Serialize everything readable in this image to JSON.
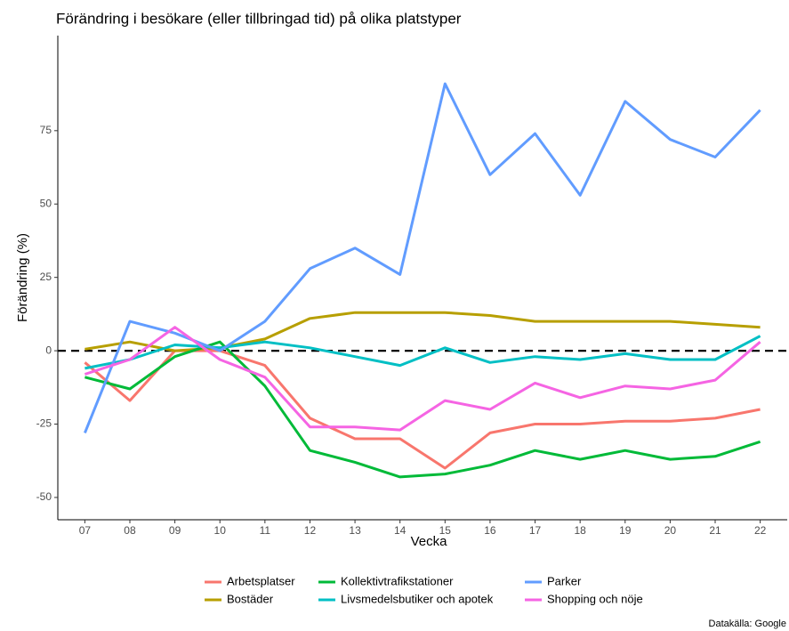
{
  "chart_data": {
    "type": "line",
    "title": "Förändring i besökare (eller tillbringad tid) på olika platstyper",
    "x_label": "Vecka",
    "y_label": "Förändring (%)",
    "caption": "Datakälla: Google",
    "categories": [
      "07",
      "08",
      "09",
      "10",
      "11",
      "12",
      "13",
      "14",
      "15",
      "16",
      "17",
      "18",
      "19",
      "20",
      "21",
      "22"
    ],
    "series": [
      {
        "name": "Arbetsplatser",
        "color": "#F8766D",
        "values": [
          -4,
          -17,
          0,
          0,
          -5,
          -23,
          -30,
          -30,
          -40,
          -28,
          -25,
          -25,
          -24,
          -24,
          -23,
          -20
        ]
      },
      {
        "name": "Bostäder",
        "color": "#B79F00",
        "values": [
          0.5,
          3,
          0,
          1,
          4,
          11,
          13,
          13,
          13,
          12,
          10,
          10,
          10,
          10,
          9,
          8
        ]
      },
      {
        "name": "Kollektivtrafikstationer",
        "color": "#00BA38",
        "values": [
          -9,
          -13,
          -2,
          3,
          -12,
          -34,
          -38,
          -43,
          -42,
          -39,
          -34,
          -37,
          -34,
          -37,
          -36,
          -31
        ]
      },
      {
        "name": "Livsmedelsbutiker och apotek",
        "color": "#00BFC4",
        "values": [
          -6,
          -3,
          2,
          1,
          3,
          1,
          -2,
          -5,
          1,
          -4,
          -2,
          -3,
          -1,
          -3,
          -3,
          5
        ]
      },
      {
        "name": "Parker",
        "color": "#619CFF",
        "values": [
          -28,
          10,
          6,
          0,
          10,
          28,
          35,
          26,
          91,
          60,
          74,
          53,
          85,
          72,
          66,
          82
        ]
      },
      {
        "name": "Shopping och nöje",
        "color": "#F564E3",
        "values": [
          -8,
          -3,
          8,
          -3,
          -9,
          -26,
          -26,
          -27,
          -17,
          -20,
          -11,
          -16,
          -12,
          -13,
          -10,
          3
        ]
      }
    ],
    "ylim": [
      -57.6,
      107.4
    ],
    "yticks": [
      -50,
      -25,
      0,
      25,
      50,
      75
    ],
    "hline": 0,
    "grid": false,
    "legend": "bottom"
  }
}
